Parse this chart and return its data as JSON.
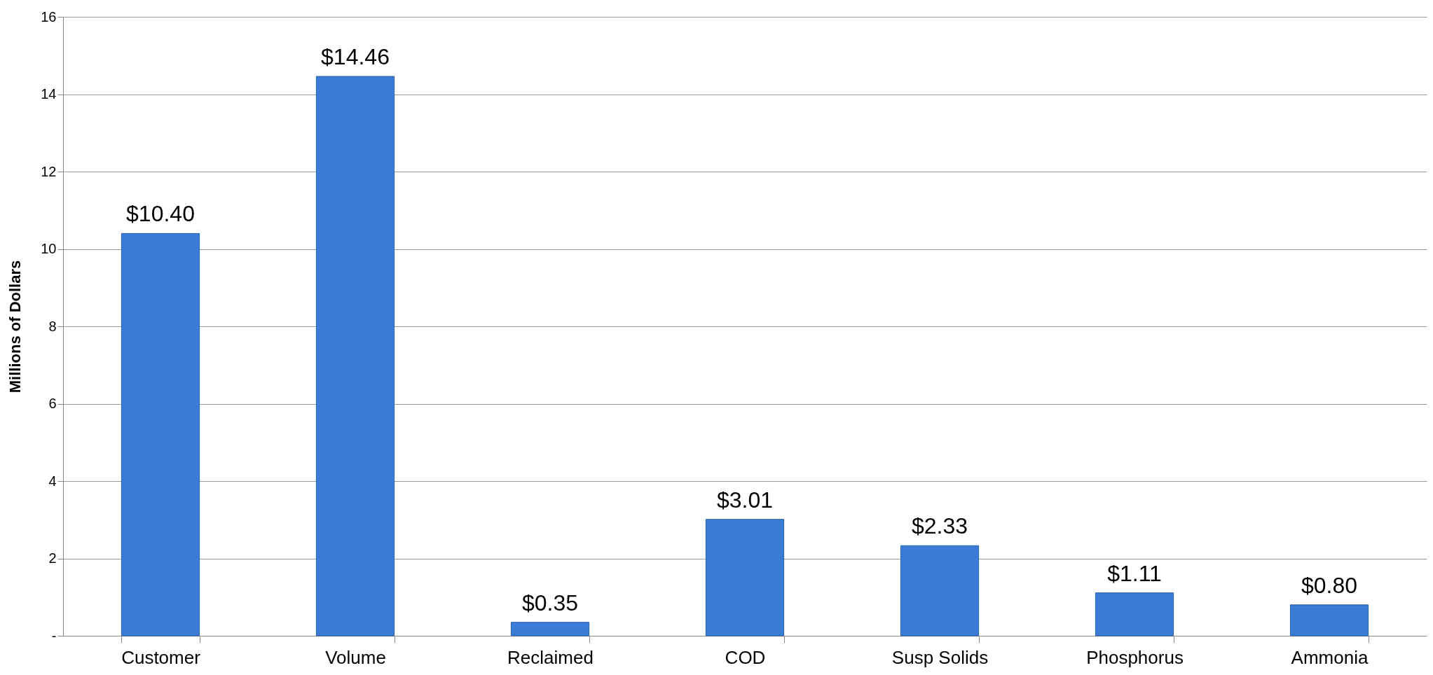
{
  "chart_data": {
    "type": "bar",
    "ylabel": "Millions of Dollars",
    "categories": [
      "Customer",
      "Volume",
      "Reclaimed",
      "COD",
      "Susp Solids",
      "Phosphorus",
      "Ammonia"
    ],
    "values": [
      10.4,
      14.46,
      0.35,
      3.01,
      2.33,
      1.11,
      0.8
    ],
    "value_labels": [
      "$10.40",
      "$14.46",
      "$0.35",
      "$3.01",
      "$2.33",
      "$1.11",
      "$0.80"
    ],
    "color": "#3a7bd5",
    "ylim": [
      0,
      16
    ],
    "yticks": [
      {
        "value": 0,
        "label": "-"
      },
      2,
      4,
      6,
      8,
      10,
      12,
      14,
      16
    ],
    "grid": "y"
  }
}
